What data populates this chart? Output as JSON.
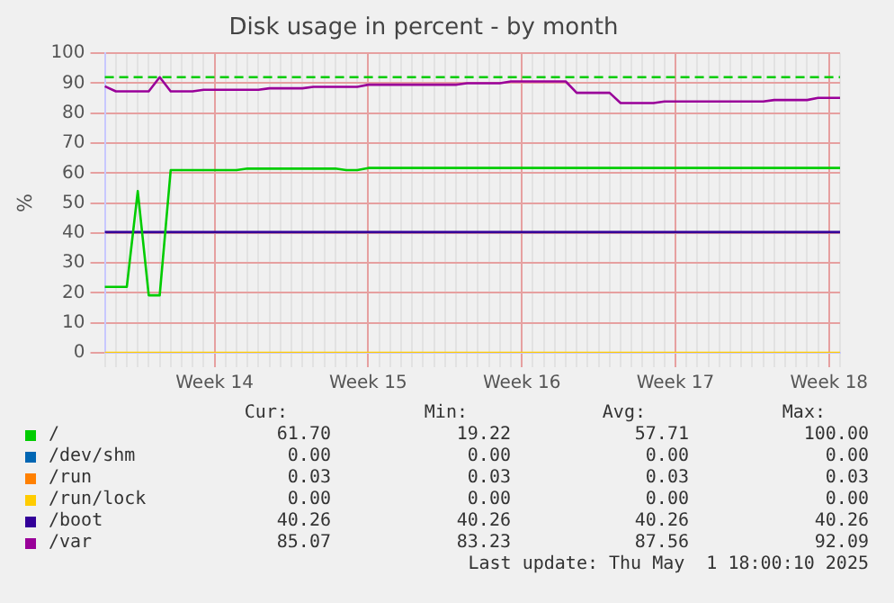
{
  "chart_data": {
    "type": "line",
    "title": "Disk usage in percent - by month",
    "ylabel": "%",
    "categories": [
      null,
      null,
      null,
      null,
      null,
      null,
      null,
      null,
      null,
      null,
      "Week 14",
      null,
      null,
      null,
      null,
      null,
      null,
      null,
      null,
      null,
      null,
      null,
      null,
      null,
      "Week 15",
      null,
      null,
      null,
      null,
      null,
      null,
      null,
      null,
      null,
      null,
      null,
      null,
      null,
      "Week 16",
      null,
      null,
      null,
      null,
      null,
      null,
      null,
      null,
      null,
      null,
      null,
      null,
      null,
      "Week 17",
      null,
      null,
      null,
      null,
      null,
      null,
      null,
      null,
      null,
      null,
      null,
      null,
      null,
      "Week 18",
      null
    ],
    "ylim": [
      0,
      100
    ],
    "yticks": [
      0,
      10,
      20,
      30,
      40,
      50,
      60,
      70,
      80,
      90,
      100
    ],
    "grid": true,
    "legend": "bottom",
    "marker": "none",
    "line_style": "solid",
    "series": [
      {
        "name": "/",
        "color": "#00cc00",
        "values": [
          22,
          22,
          22,
          54,
          19.2,
          19.2,
          61,
          61,
          61,
          61,
          61,
          61,
          61,
          61.5,
          61.5,
          61.5,
          61.5,
          61.5,
          61.5,
          61.5,
          61.5,
          61.5,
          61,
          61,
          61.7,
          61.7,
          61.7,
          61.7,
          61.7,
          61.7,
          61.7,
          61.7,
          61.7,
          61.7,
          61.7,
          61.7,
          61.7,
          61.7,
          61.7,
          61.7,
          61.7,
          61.7,
          61.7,
          61.7,
          61.7,
          61.7,
          61.7,
          61.7,
          61.7,
          61.7,
          61.7,
          61.7,
          61.7,
          61.7,
          61.7,
          61.7,
          61.7,
          61.7,
          61.7,
          61.7,
          61.7,
          61.7,
          61.7,
          61.7,
          61.7,
          61.7,
          61.7,
          61.7
        ]
      },
      {
        "name": "/dev/shm",
        "color": "#0066b3",
        "values": [
          null,
          null,
          null,
          null,
          null,
          null,
          null,
          null,
          null,
          null,
          null,
          null,
          null,
          null,
          null,
          null,
          null,
          null,
          null,
          null,
          null,
          null,
          null,
          null,
          null,
          null,
          null,
          null,
          null,
          null,
          null,
          null,
          null,
          null,
          null,
          null,
          null,
          null,
          null,
          null,
          null,
          null,
          null,
          null,
          null,
          null,
          null,
          null,
          null,
          null,
          null,
          null,
          null,
          null,
          null,
          null,
          null,
          null,
          null,
          null,
          null,
          null,
          null,
          null,
          null,
          null,
          null,
          null
        ]
      },
      {
        "name": "/run",
        "color": "#ff8000",
        "values": [
          null,
          null,
          null,
          null,
          null,
          null,
          null,
          null,
          null,
          null,
          null,
          null,
          null,
          null,
          null,
          null,
          null,
          null,
          null,
          null,
          null,
          null,
          null,
          null,
          null,
          null,
          null,
          null,
          null,
          null,
          null,
          null,
          null,
          null,
          null,
          null,
          null,
          null,
          null,
          null,
          null,
          null,
          null,
          null,
          null,
          null,
          null,
          null,
          null,
          null,
          null,
          null,
          null,
          null,
          null,
          null,
          null,
          null,
          null,
          null,
          null,
          null,
          null,
          null,
          null,
          null,
          null,
          null
        ]
      },
      {
        "name": "/run/lock",
        "color": "#ffcc00",
        "values": [
          0,
          0,
          0,
          0,
          0,
          0,
          0,
          0,
          0,
          0,
          0,
          0,
          0,
          0,
          0,
          0,
          0,
          0,
          0,
          0,
          0,
          0,
          0,
          0,
          0,
          0,
          0,
          0,
          0,
          0,
          0,
          0,
          0,
          0,
          0,
          0,
          0,
          0,
          0,
          0,
          0,
          0,
          0,
          0,
          0,
          0,
          0,
          0,
          0,
          0,
          0,
          0,
          0,
          0,
          0,
          0,
          0,
          0,
          0,
          0,
          0,
          0,
          0,
          0,
          0,
          0,
          0,
          0
        ]
      },
      {
        "name": "/boot",
        "color": "#330099",
        "values": [
          40.3,
          40.3,
          40.3,
          40.3,
          40.3,
          40.3,
          40.3,
          40.3,
          40.3,
          40.3,
          40.3,
          40.3,
          40.3,
          40.3,
          40.3,
          40.3,
          40.3,
          40.3,
          40.3,
          40.3,
          40.3,
          40.3,
          40.3,
          40.3,
          40.3,
          40.3,
          40.3,
          40.3,
          40.3,
          40.3,
          40.3,
          40.3,
          40.3,
          40.3,
          40.3,
          40.3,
          40.3,
          40.3,
          40.3,
          40.3,
          40.3,
          40.3,
          40.3,
          40.3,
          40.3,
          40.3,
          40.3,
          40.3,
          40.3,
          40.3,
          40.3,
          40.3,
          40.3,
          40.3,
          40.3,
          40.3,
          40.3,
          40.3,
          40.3,
          40.3,
          40.3,
          40.3,
          40.3,
          40.3,
          40.3,
          40.3,
          40.3,
          40.3
        ]
      },
      {
        "name": "/var",
        "color": "#990099",
        "values": [
          89,
          87.3,
          87.3,
          87.3,
          87.3,
          92,
          87.3,
          87.3,
          87.3,
          87.8,
          87.8,
          87.8,
          87.8,
          87.8,
          87.8,
          88.3,
          88.3,
          88.3,
          88.3,
          88.8,
          88.8,
          88.8,
          88.8,
          88.8,
          89.5,
          89.5,
          89.5,
          89.5,
          89.5,
          89.5,
          89.5,
          89.5,
          89.5,
          90,
          90,
          90,
          90,
          90.6,
          90.6,
          90.6,
          90.6,
          90.6,
          90.6,
          86.8,
          86.8,
          86.8,
          86.8,
          83.4,
          83.4,
          83.4,
          83.4,
          83.9,
          83.9,
          83.9,
          83.9,
          83.9,
          83.9,
          83.9,
          83.9,
          83.9,
          83.9,
          84.4,
          84.4,
          84.4,
          84.4,
          85.1,
          85.1,
          85.1
        ]
      }
    ],
    "ref_lines": [
      {
        "axis": "y",
        "value": 92,
        "color": "#00cc00",
        "line_style": "dashed"
      }
    ],
    "annotations": [
      "Cur:",
      "Min:",
      "Avg:",
      "Max:",
      "61.70",
      "19.22",
      "57.71",
      "100.00",
      "0.00",
      "0.00",
      "0.00",
      "0.00",
      "0.03",
      "0.03",
      "0.03",
      "0.03",
      "0.00",
      "0.00",
      "0.00",
      "0.00",
      "40.26",
      "40.26",
      "40.26",
      "40.26",
      "85.07",
      "83.23",
      "87.56",
      "92.09",
      "Last update: Thu May  1 18:00:10 2025"
    ]
  }
}
